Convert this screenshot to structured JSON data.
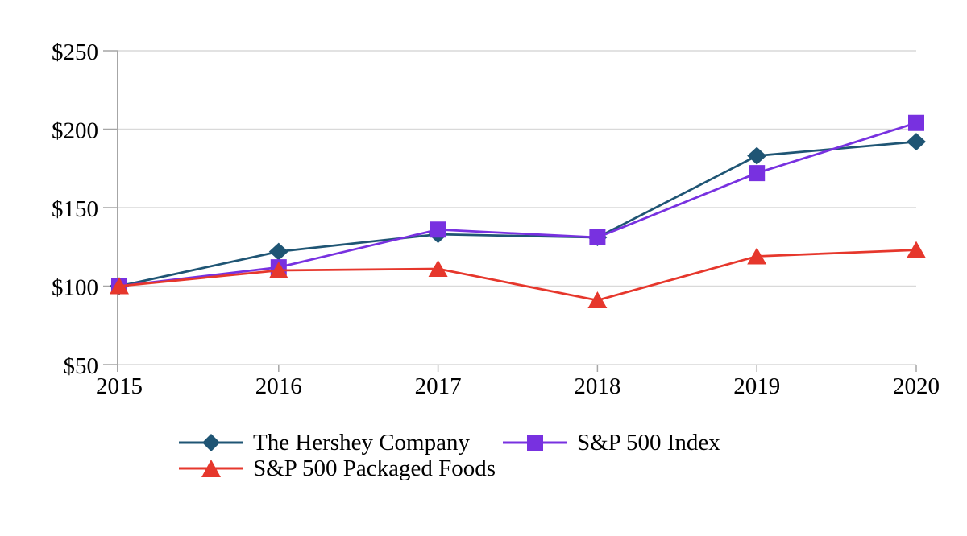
{
  "chart_data": {
    "type": "line",
    "x_categories": [
      "2015",
      "2016",
      "2017",
      "2018",
      "2019",
      "2020"
    ],
    "y_ticks": [
      50,
      100,
      150,
      200,
      250
    ],
    "y_tick_prefix": "$",
    "ylim": [
      50,
      250
    ],
    "grid": "horizontal",
    "legend_position": "bottom",
    "series": [
      {
        "name": "The Hershey Company",
        "marker": "diamond",
        "color": "#1F5574",
        "values": [
          100,
          122,
          133,
          131,
          183,
          192
        ]
      },
      {
        "name": "S&P 500 Index",
        "marker": "square",
        "color": "#7831E0",
        "values": [
          100,
          112,
          136,
          131,
          172,
          204
        ]
      },
      {
        "name": "S&P 500 Packaged Foods",
        "marker": "triangle",
        "color": "#E6372C",
        "values": [
          100,
          110,
          111,
          91,
          119,
          123
        ]
      }
    ]
  },
  "colors": {
    "grid": "#D9D9D9",
    "axis": "#A6A6A6",
    "label_text": "#000000",
    "background": "#FFFFFF"
  }
}
